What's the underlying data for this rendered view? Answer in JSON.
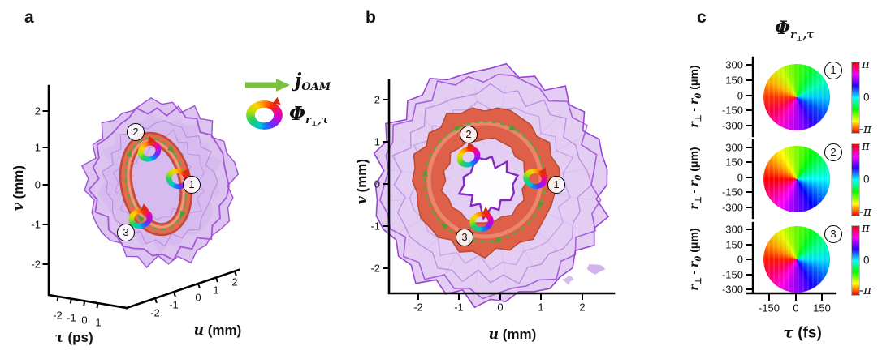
{
  "colors": {
    "colorbar_stops": [
      "#ff0000",
      "#ff00ff",
      "#2a00ff",
      "#00ffff",
      "#00ff00",
      "#ffff00",
      "#ff0000"
    ],
    "blob_fill": "#ddc3f0",
    "blob_edge": "#9a44d4",
    "vortex_core_fill": "#df6049",
    "oam_arrow_green": "#7cc142",
    "dash_green": "#58a93a"
  },
  "fig": {
    "a": {
      "label": "a",
      "ylabel_sym": "v",
      "ylabel_unit": " (mm)",
      "y_ticks": [
        "2",
        "1",
        "0",
        "-1",
        "-2"
      ],
      "tau_sym": "τ",
      "tau_unit": " (ps)",
      "tau_ticks": [
        "-2",
        "-1",
        "0",
        "1"
      ],
      "x_sym": "u",
      "x_unit": " (mm)",
      "x_ticks": [
        "-2",
        "-1",
        "0",
        "1",
        "2"
      ],
      "m1": "1",
      "m2": "2",
      "m3": "3"
    },
    "legend": {
      "j_sym": "j",
      "j_sub": "OAM",
      "phi_sym": "Φ",
      "phi_sub_r": "r",
      "phi_sub_perp": "⊥",
      "phi_sub_rest": ",τ"
    },
    "b": {
      "label": "b",
      "ylabel_sym": "v",
      "ylabel_unit": " (mm)",
      "y_ticks": [
        "2",
        "1",
        "0",
        "-1",
        "-2"
      ],
      "x_sym": "u",
      "x_unit": " (mm)",
      "x_ticks": [
        "-2",
        "-1",
        "0",
        "1",
        "2"
      ],
      "m1": "1",
      "m2": "2",
      "m3": "3"
    },
    "c": {
      "label": "c",
      "title_sym": "Φ",
      "title_sub_r": "r",
      "title_sub_perp": "⊥",
      "title_sub_rest": ",τ",
      "ylabel": {
        "r1": "r",
        "perp": "⊥",
        "minus": " - ",
        "r2": "r",
        "zero": "0",
        "unit": " (μm)"
      },
      "y_ticks": [
        "300",
        "150",
        "0",
        "-150",
        "-300"
      ],
      "x_ticks": [
        "-150",
        "0",
        "150"
      ],
      "x_sym": "τ",
      "x_unit": " (fs)",
      "cbar_top": "π",
      "cbar_mid": "0",
      "cbar_bottom": "-π",
      "m1": "1",
      "m2": "2",
      "m3": "3"
    }
  },
  "chart_data": [
    {
      "type": "isosurface-3d",
      "panel": "a",
      "description": "3D intensity isosurface (purple) of spatiotemporal optical vortex with red toroidal vortex core; green dashed loop shows OAM current j_OAM circulating along the ring; rainbow circular arrows mark local phase circulation at positions 1-3",
      "axes": {
        "u": {
          "label": "u (mm)",
          "ticks": [
            -2,
            -1,
            0,
            1,
            2
          ]
        },
        "v": {
          "label": "v (mm)",
          "ticks": [
            2,
            1,
            0,
            -1,
            -2
          ]
        },
        "tau": {
          "label": "τ (ps)",
          "ticks": [
            -2,
            -1,
            0,
            1
          ]
        }
      },
      "markers": [
        1,
        2,
        3
      ]
    },
    {
      "type": "isosurface-2d-projection",
      "panel": "b",
      "description": "Front (u-v) view of the same field: purple intensity disc with red ring vortex core, clockwise green dashed j_OAM loop and phase-circulation markers 1-3",
      "axes": {
        "u": {
          "label": "u (mm)",
          "ticks": [
            -2,
            -1,
            0,
            1,
            2
          ]
        },
        "v": {
          "label": "v (mm)",
          "ticks": [
            2,
            1,
            0,
            -1,
            -2
          ]
        }
      },
      "markers": [
        1,
        2,
        3
      ]
    },
    {
      "type": "heatmap",
      "panel": "c",
      "title": "Φ_r⊥,τ",
      "description": "Local spatiotemporal phase maps at ring positions 1-3; each disc shows phase winding of 2π around the singularity (cyclic HSV colormap)",
      "x": {
        "label": "τ (fs)",
        "ticks": [
          -150,
          0,
          150
        ]
      },
      "y": {
        "label": "r⊥ - r0 (μm)",
        "ticks": [
          300,
          150,
          0,
          -150,
          -300
        ]
      },
      "colorbar": {
        "max": "π",
        "mid": "0",
        "min": "-π"
      },
      "colormap": "cyclic HSV (red at ±π, cyan at 0)",
      "value_range": [
        "-π",
        "π"
      ],
      "wheel_hue_offsets": [
        12,
        0,
        6
      ],
      "subplots": [
        {
          "marker": 1
        },
        {
          "marker": 2
        },
        {
          "marker": 3
        }
      ]
    }
  ]
}
